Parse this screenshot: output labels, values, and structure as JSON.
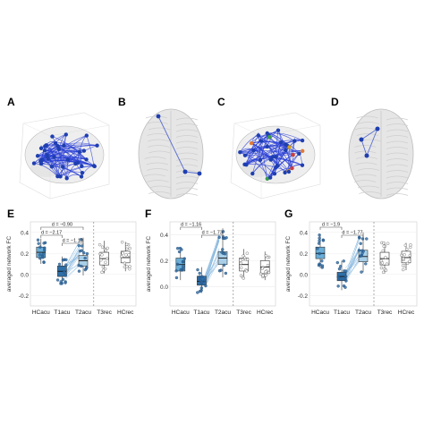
{
  "panel_letters": {
    "A": "A",
    "B": "B",
    "C": "C",
    "D": "D",
    "E": "E",
    "F": "F",
    "G": "G"
  },
  "colors": {
    "edge_blue": "#2a3fd6",
    "node_blue": "#1f3fb0",
    "hcacu_fill": "#6aaed8",
    "t1acu_fill": "#2e6fa8",
    "t2acu_fill": "#a9cfe8",
    "rec_fill": "#ffffff",
    "highlight_edge": "#5a6fd0",
    "brain_gray": "#cfcfcf",
    "sig_line": "#555555",
    "dashed_sep": "#777777"
  },
  "chart_data": [
    {
      "panel": "E",
      "type": "box",
      "ylabel": "averaged network FC",
      "categories": [
        "HCacu",
        "T1acu",
        "T2acu",
        "T3rec",
        "HCrec"
      ],
      "yticks": [
        "-0.2",
        "0.0",
        "0.2",
        "0.4"
      ],
      "ylim": [
        -0.3,
        0.5
      ],
      "medians": [
        0.21,
        0.03,
        0.13,
        0.15,
        0.16
      ],
      "q1": [
        0.16,
        -0.02,
        0.08,
        0.09,
        0.11
      ],
      "q3": [
        0.26,
        0.08,
        0.18,
        0.21,
        0.22
      ],
      "whisker_low": [
        0.1,
        -0.1,
        -0.01,
        0.01,
        0.03
      ],
      "whisker_high": [
        0.34,
        0.17,
        0.35,
        0.32,
        0.31
      ],
      "annotations": [
        {
          "label": "d = −0.90",
          "from": "HCacu",
          "to": "T2acu"
        },
        {
          "label": "d = −2.17",
          "from": "HCacu",
          "to": "T1acu"
        },
        {
          "label": "d = −1.13",
          "from": "T1acu",
          "to": "T2acu"
        }
      ],
      "grid": true
    },
    {
      "panel": "F",
      "type": "box",
      "ylabel": "averaged network FC",
      "categories": [
        "HCacu",
        "T1acu",
        "T2acu",
        "T3rec",
        "HCrec"
      ],
      "yticks": [
        "0.0",
        "0.2",
        "0.4"
      ],
      "ylim": [
        -0.15,
        0.5
      ],
      "medians": [
        0.17,
        0.04,
        0.22,
        0.17,
        0.15
      ],
      "q1": [
        0.12,
        0.01,
        0.17,
        0.12,
        0.1
      ],
      "q3": [
        0.22,
        0.08,
        0.27,
        0.22,
        0.2
      ],
      "whisker_low": [
        0.05,
        -0.05,
        0.07,
        0.06,
        0.05
      ],
      "whisker_high": [
        0.3,
        0.15,
        0.45,
        0.29,
        0.27
      ],
      "annotations": [
        {
          "label": "d = −1.16",
          "from": "HCacu",
          "to": "T1acu"
        },
        {
          "label": "d = −1.73",
          "from": "T1acu",
          "to": "T2acu"
        }
      ],
      "grid": true
    },
    {
      "panel": "G",
      "type": "box",
      "ylabel": "averaged network FC",
      "categories": [
        "HCacu",
        "T1acu",
        "T2acu",
        "T3rec",
        "HCrec"
      ],
      "yticks": [
        "-0.2",
        "0.0",
        "0.2",
        "0.4"
      ],
      "ylim": [
        -0.3,
        0.5
      ],
      "medians": [
        0.2,
        -0.02,
        0.17,
        0.15,
        0.16
      ],
      "q1": [
        0.15,
        -0.06,
        0.12,
        0.09,
        0.11
      ],
      "q3": [
        0.26,
        0.02,
        0.23,
        0.21,
        0.22
      ],
      "whisker_low": [
        0.06,
        -0.15,
        0.02,
        0.01,
        0.04
      ],
      "whisker_high": [
        0.38,
        0.13,
        0.4,
        0.31,
        0.3
      ],
      "annotations": [
        {
          "label": "d = −1.9",
          "from": "HCacu",
          "to": "T1acu"
        },
        {
          "label": "d = −1.77",
          "from": "T1acu",
          "to": "T2acu"
        }
      ],
      "grid": true
    }
  ]
}
